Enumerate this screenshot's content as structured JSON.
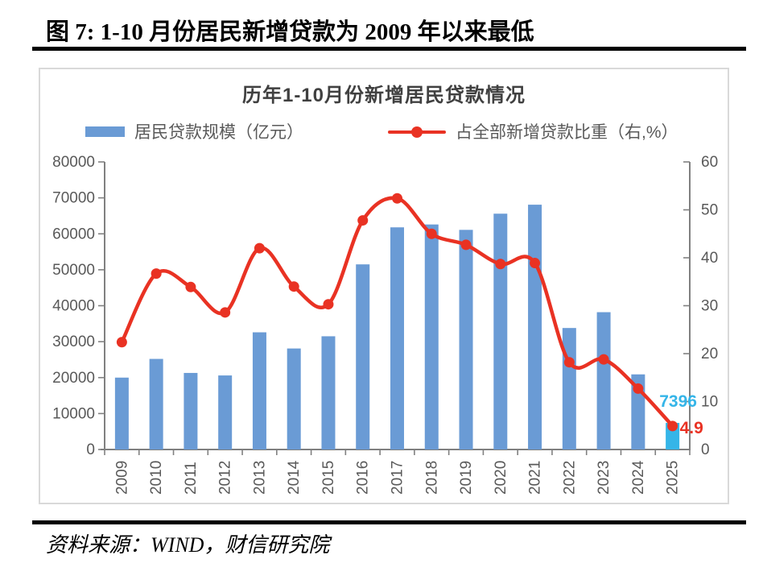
{
  "header": {
    "title": "图 7: 1-10 月份居民新增贷款为 2009 年以来最低"
  },
  "footer": {
    "source": "资料来源：WIND，财信研究院"
  },
  "chart_data": {
    "type": "combo-bar-line",
    "title": "历年1-10月份新增居民贷款情况",
    "legend_position": "top",
    "grid": false,
    "categories": [
      "2009",
      "2010",
      "2011",
      "2012",
      "2013",
      "2014",
      "2015",
      "2016",
      "2017",
      "2018",
      "2019",
      "2020",
      "2021",
      "2022",
      "2023",
      "2024",
      "2025"
    ],
    "series": [
      {
        "name": "居民贷款规模（亿元）",
        "type": "bar",
        "axis": "left",
        "color": "#6A9BD5",
        "last_value_color": "#35B5E8",
        "values": [
          20000,
          25200,
          21300,
          20600,
          32600,
          28100,
          31500,
          51500,
          61800,
          62600,
          61100,
          65600,
          68100,
          33800,
          38200,
          20900,
          7396
        ]
      },
      {
        "name": "占全部新增贷款比重（右,%）",
        "type": "line",
        "axis": "right",
        "color": "#E93223",
        "values": [
          22.4,
          36.7,
          33.9,
          28.6,
          42.0,
          34.0,
          30.3,
          47.8,
          52.4,
          45.0,
          42.7,
          38.7,
          38.9,
          18.2,
          18.8,
          12.7,
          4.9
        ]
      }
    ],
    "left_axis": {
      "min": 0,
      "max": 80000,
      "step": 10000,
      "tick_labels": [
        "80000",
        "70000",
        "60000",
        "50000",
        "40000",
        "30000",
        "20000",
        "10000",
        "0"
      ]
    },
    "right_axis": {
      "min": 0,
      "max": 60,
      "step": 10,
      "tick_labels": [
        "60",
        "50",
        "40",
        "30",
        "20",
        "10",
        "0"
      ]
    },
    "annotations": [
      {
        "target": "bar-2025",
        "text": "7396",
        "color": "#35B5E8"
      },
      {
        "target": "line-2025",
        "text": "4.9",
        "color": "#E93223"
      }
    ],
    "style": {
      "axis_line_color": "#808080",
      "tick_label_color": "#595959",
      "frame_border_color": "#D9D9D9",
      "title_color": "#404040"
    }
  }
}
